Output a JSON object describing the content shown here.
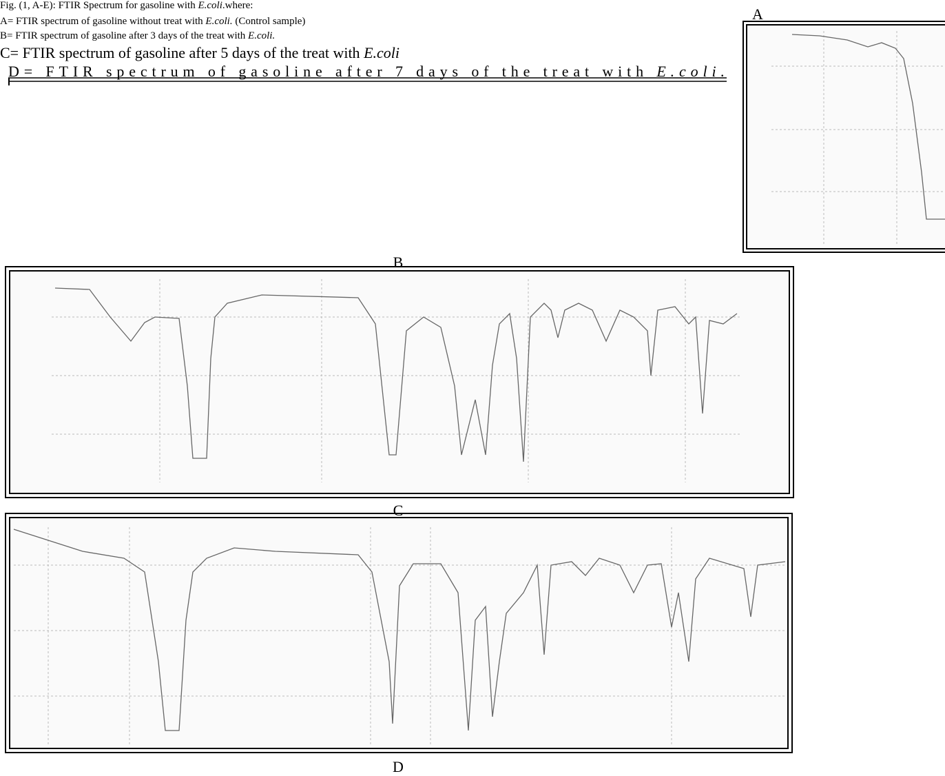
{
  "caption": [
    {
      "before": "Fig. (1, A-E): FTIR Spectrum for gasoline with ",
      "organism": "E.coli",
      "after": ".where:"
    },
    {
      "before": "A= FTIR spectrum of gasoline without treat with ",
      "organism": "E.coli.",
      "after": " (Control sample)"
    },
    {
      "before": "B= FTIR spectrum of gasoline after 3 days of the treat with ",
      "organism": "E.coli."
    },
    {
      "before": "C= FTIR spectrum of gasoline after 5 days of the treat with ",
      "organism": "E.coli"
    },
    {
      "before": "D= FTIR spectrum of gasoline after 7 days of the treat with ",
      "organism": "E.coli."
    }
  ],
  "panels": [
    {
      "label": "A"
    },
    {
      "label": "B"
    },
    {
      "label": "C"
    },
    {
      "label": "D"
    }
  ]
}
